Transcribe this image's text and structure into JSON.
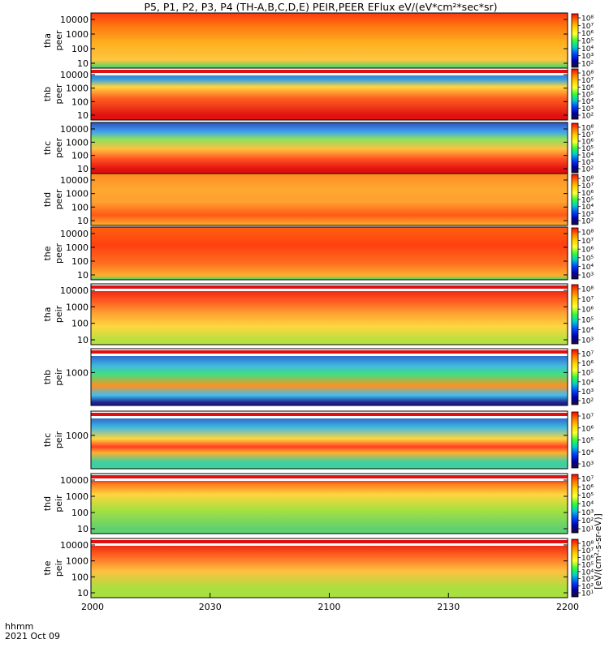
{
  "chart_data": {
    "type": "heatmap",
    "title": "P5, P1, P2, P3, P4 (TH-A,B,C,D,E) PEIR,PEER EFlux eV/(eV*cm²*sec*sr)",
    "x_ticks": [
      "2000",
      "2030",
      "2100",
      "2130",
      "2200"
    ],
    "x_label_line1": "hhmm",
    "x_label_line2": "2021 Oct 09",
    "yscale": "log",
    "colorscale": "rainbow",
    "colorbar_unit": "[eV/(cm²-s-sr-eV)]",
    "panels": [
      {
        "probe": "tha",
        "label_probe": "tha",
        "label_species": "peer",
        "yticks": [
          "10",
          "100",
          "1000",
          "10000"
        ],
        "cb_ticks": [
          "10⁸",
          "10⁷",
          "10⁶",
          "10⁵",
          "10⁴",
          "10³",
          "10²"
        ]
      },
      {
        "probe": "thb",
        "label_probe": "thb",
        "label_species": "peer",
        "yticks": [
          "10",
          "100",
          "1000",
          "10000"
        ],
        "cb_ticks": [
          "10⁸",
          "10⁷",
          "10⁶",
          "10⁵",
          "10⁴",
          "10³",
          "10²"
        ]
      },
      {
        "probe": "thc",
        "label_probe": "thc",
        "label_species": "peer",
        "yticks": [
          "10",
          "100",
          "1000",
          "10000"
        ],
        "cb_ticks": [
          "10⁸",
          "10⁷",
          "10⁶",
          "10⁵",
          "10⁴",
          "10³",
          "10²"
        ]
      },
      {
        "probe": "thd",
        "label_probe": "thd",
        "label_species": "peer",
        "yticks": [
          "10",
          "100",
          "1000",
          "10000"
        ],
        "cb_ticks": [
          "10⁸",
          "10⁷",
          "10⁶",
          "10⁵",
          "10⁴",
          "10³",
          "10²"
        ]
      },
      {
        "probe": "the",
        "label_probe": "the",
        "label_species": "peer",
        "yticks": [
          "10",
          "100",
          "1000",
          "10000"
        ],
        "cb_ticks": [
          "10⁸",
          "10⁷",
          "10⁶",
          "10⁵",
          "10⁴",
          "10³"
        ]
      },
      {
        "probe": "tha",
        "label_probe": "tha",
        "label_species": "peir",
        "yticks": [
          "10",
          "100",
          "1000",
          "10000"
        ],
        "cb_ticks": [
          "10⁸",
          "10⁷",
          "10⁶",
          "10⁵",
          "10⁴",
          "10³"
        ]
      },
      {
        "probe": "thb",
        "label_probe": "thb",
        "label_species": "peir",
        "yticks": [
          "1000"
        ],
        "cb_ticks": [
          "10⁷",
          "10⁶",
          "10⁵",
          "10⁴",
          "10³",
          "10²"
        ]
      },
      {
        "probe": "thc",
        "label_probe": "thc",
        "label_species": "peir",
        "yticks": [
          "1000"
        ],
        "cb_ticks": [
          "10⁷",
          "10⁶",
          "10⁵",
          "10⁴",
          "10³"
        ]
      },
      {
        "probe": "thd",
        "label_probe": "thd",
        "label_species": "peir",
        "yticks": [
          "10",
          "100",
          "1000",
          "10000"
        ],
        "cb_ticks": [
          "10⁷",
          "10⁶",
          "10⁵",
          "10⁴",
          "10³",
          "10²",
          "10¹"
        ]
      },
      {
        "probe": "the",
        "label_probe": "the",
        "label_species": "peir",
        "yticks": [
          "10",
          "100",
          "1000",
          "10000"
        ],
        "cb_ticks": [
          "10⁸",
          "10⁷",
          "10⁶",
          "10⁵",
          "10⁴",
          "10³",
          "10²",
          "10¹"
        ]
      }
    ]
  }
}
